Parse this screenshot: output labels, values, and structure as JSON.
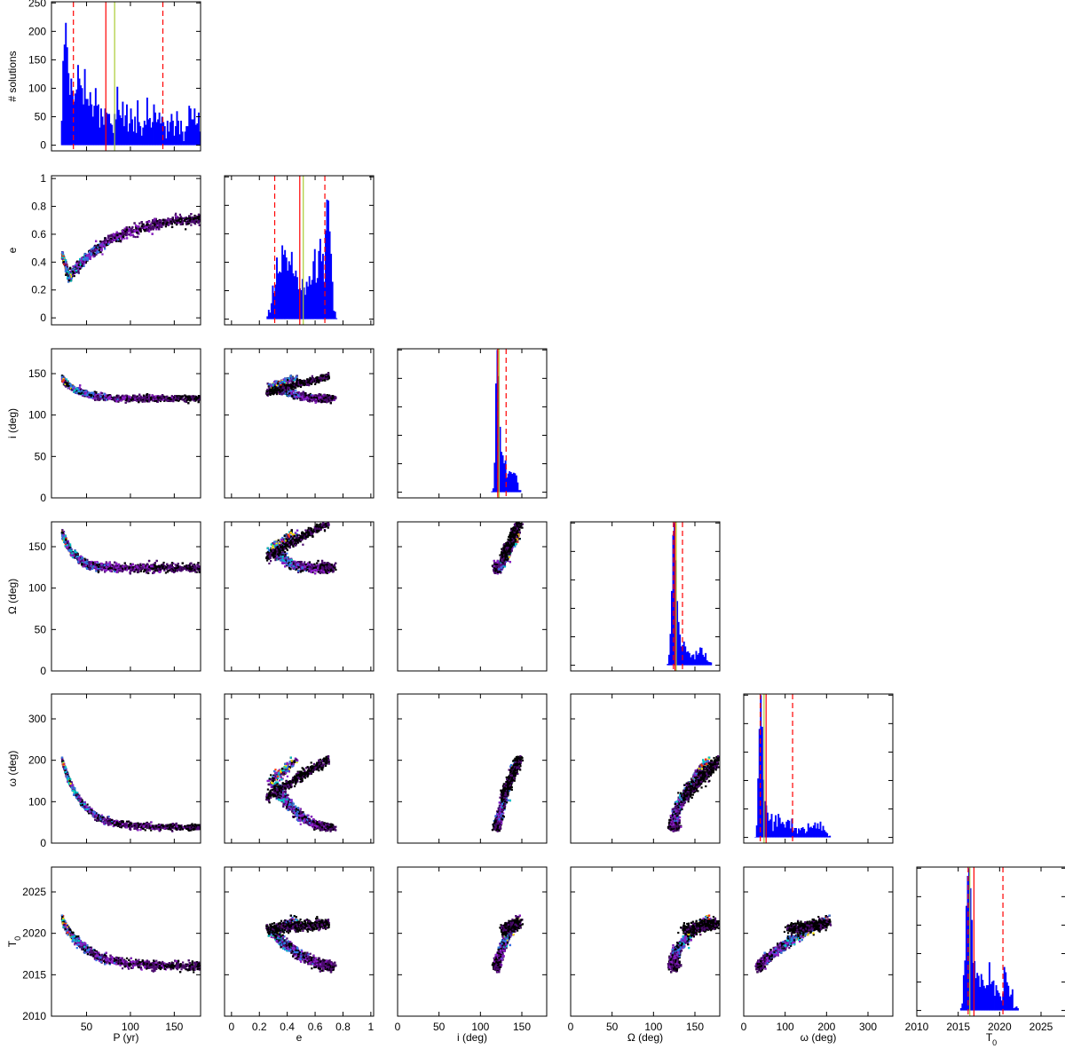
{
  "chart_data": {
    "type": "corner",
    "parameters": [
      {
        "key": "P",
        "axis_label": "P (yr)",
        "range": [
          10,
          180
        ],
        "ticks": [
          50,
          100,
          150
        ],
        "hist": {
          "best_fit": 72,
          "median": 82,
          "ci": [
            35,
            137
          ]
        }
      },
      {
        "key": "e",
        "axis_label": "e",
        "range": [
          -0.05,
          1.02
        ],
        "ticks": [
          0.0,
          0.2,
          0.4,
          0.6,
          0.8,
          1.0
        ],
        "hist": {
          "best_fit": 0.49,
          "median": 0.515,
          "ci": [
            0.31,
            0.67
          ]
        }
      },
      {
        "key": "i",
        "axis_label": "i (deg)",
        "range": [
          0,
          180
        ],
        "ticks": [
          0,
          50,
          100,
          150
        ],
        "hist": {
          "best_fit": 121,
          "median": 122.5,
          "ci": [
            121,
            131
          ]
        }
      },
      {
        "key": "Omega",
        "axis_label": "Ω (deg)",
        "range": [
          0,
          180
        ],
        "ticks": [
          0,
          50,
          100,
          150
        ],
        "hist": {
          "best_fit": 126,
          "median": 127.5,
          "ci": [
            124,
            135
          ]
        }
      },
      {
        "key": "omega",
        "axis_label": "ω (deg)",
        "range": [
          0,
          360
        ],
        "ticks": [
          0,
          100,
          200,
          300
        ],
        "hist": {
          "best_fit": 54,
          "median": 49,
          "ci": [
            40,
            118
          ]
        }
      },
      {
        "key": "T0",
        "axis_label": "T",
        "axis_label_sub": "0",
        "range": [
          2010,
          2028
        ],
        "ticks": [
          2010,
          2015,
          2020,
          2025
        ],
        "hist": {
          "best_fit": 2016.9,
          "median": 2016.4,
          "ci": [
            2016.2,
            2020.4
          ]
        }
      }
    ],
    "hist_ylabel": "# solutions",
    "hist_yrange": [
      -10,
      252
    ],
    "hist_yticks": [
      0,
      50,
      100,
      150,
      200,
      250
    ],
    "colors": {
      "histogram": "#0000ff",
      "best_fit_line": "#ff0000",
      "median_line": "#aacc33",
      "ci_line": "#ff0000",
      "density": [
        "#000000",
        "#4b0a6e",
        "#8c1ec8",
        "#3278e6",
        "#00c8c8",
        "#ffe600",
        "#ff3200"
      ]
    }
  }
}
